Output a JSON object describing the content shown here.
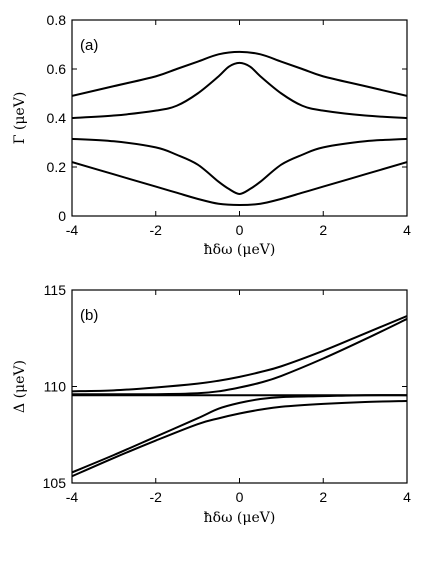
{
  "chart_data": [
    {
      "type": "line",
      "panel_label": "(a)",
      "xlabel": "ħδω (μeV)",
      "ylabel": "Γ (μeV)",
      "xlim": [
        -4,
        4
      ],
      "ylim": [
        0,
        0.8
      ],
      "xticks": [
        "-4",
        "-2",
        "0",
        "2",
        "4"
      ],
      "yticks": [
        "0",
        "0.2",
        "0.4",
        "0.6",
        "0.8"
      ],
      "grid": false,
      "line_color": "#000000",
      "series": [
        {
          "x": [
            -4,
            -3,
            -2,
            -1.5,
            -1,
            -0.5,
            0,
            0.5,
            1,
            1.5,
            2,
            3,
            4
          ],
          "y": [
            0.49,
            0.53,
            0.57,
            0.6,
            0.63,
            0.66,
            0.67,
            0.66,
            0.63,
            0.6,
            0.57,
            0.53,
            0.49
          ]
        },
        {
          "x": [
            -4,
            -3,
            -2,
            -1.5,
            -1,
            -0.5,
            -0.25,
            0,
            0.25,
            0.5,
            1,
            1.5,
            2,
            3,
            4
          ],
          "y": [
            0.4,
            0.41,
            0.43,
            0.45,
            0.5,
            0.57,
            0.61,
            0.625,
            0.61,
            0.57,
            0.5,
            0.45,
            0.43,
            0.41,
            0.4
          ]
        },
        {
          "x": [
            -4,
            -3,
            -2,
            -1.5,
            -1,
            -0.5,
            -0.25,
            0,
            0.25,
            0.5,
            1,
            1.5,
            2,
            3,
            4
          ],
          "y": [
            0.315,
            0.305,
            0.28,
            0.25,
            0.21,
            0.14,
            0.11,
            0.09,
            0.11,
            0.14,
            0.21,
            0.25,
            0.28,
            0.305,
            0.315
          ]
        },
        {
          "x": [
            -4,
            -3,
            -2,
            -1.5,
            -1,
            -0.5,
            0,
            0.5,
            1,
            1.5,
            2,
            3,
            4
          ],
          "y": [
            0.22,
            0.17,
            0.12,
            0.095,
            0.07,
            0.05,
            0.045,
            0.05,
            0.07,
            0.095,
            0.12,
            0.17,
            0.22
          ]
        }
      ]
    },
    {
      "type": "line",
      "panel_label": "(b)",
      "xlabel": "ħδω (μeV)",
      "ylabel": "Δ (μeV)",
      "xlim": [
        -4,
        4
      ],
      "ylim": [
        105,
        115
      ],
      "xticks": [
        "-4",
        "-2",
        "0",
        "2",
        "4"
      ],
      "yticks": [
        "105",
        "110",
        "115"
      ],
      "grid": false,
      "line_color": "#000000",
      "series": [
        {
          "x": [
            -4,
            -3,
            -2,
            -1,
            -0.5,
            0,
            0.5,
            1,
            2,
            3,
            4
          ],
          "y": [
            109.75,
            109.8,
            109.95,
            110.15,
            110.3,
            110.5,
            110.75,
            111.05,
            111.85,
            112.75,
            113.65
          ]
        },
        {
          "x": [
            -4,
            -3,
            -2,
            -1,
            -0.5,
            0,
            0.5,
            1,
            2,
            3,
            4
          ],
          "y": [
            109.6,
            109.6,
            109.6,
            109.65,
            109.75,
            109.95,
            110.2,
            110.55,
            111.45,
            112.45,
            113.5
          ]
        },
        {
          "x": [
            -4,
            -3,
            -2,
            -1,
            0,
            1,
            2,
            3,
            4
          ],
          "y": [
            109.55,
            109.55,
            109.55,
            109.55,
            109.55,
            109.55,
            109.55,
            109.55,
            109.55
          ]
        },
        {
          "x": [
            -4,
            -3,
            -2,
            -1,
            -0.5,
            0,
            0.5,
            1,
            2,
            3,
            4
          ],
          "y": [
            105.55,
            106.45,
            107.4,
            108.35,
            108.85,
            109.15,
            109.35,
            109.45,
            109.5,
            109.55,
            109.55
          ]
        },
        {
          "x": [
            -4,
            -3,
            -2,
            -1,
            -0.5,
            0,
            0.5,
            1,
            2,
            3,
            4
          ],
          "y": [
            105.35,
            106.3,
            107.2,
            108.05,
            108.35,
            108.6,
            108.8,
            108.95,
            109.1,
            109.2,
            109.25
          ]
        }
      ]
    }
  ]
}
